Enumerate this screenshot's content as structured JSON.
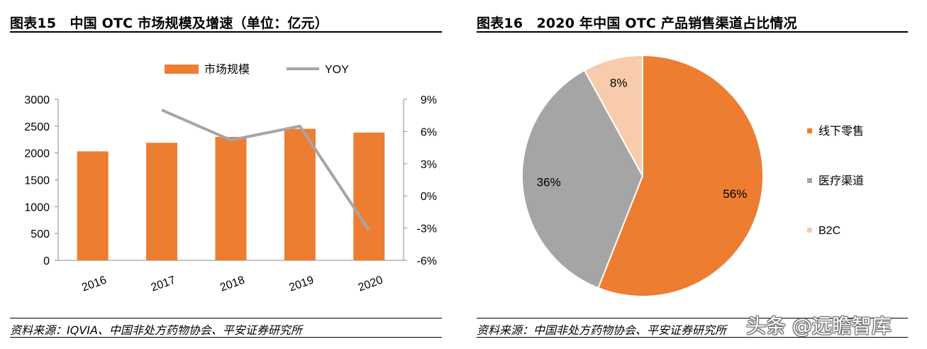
{
  "left": {
    "title": "图表15　中国 OTC 市场规模及增速（单位：亿元）",
    "source": "资料来源：IQVIA、中国非处方药物协会、平安证券研究所"
  },
  "right": {
    "title": "图表16　2020 年中国 OTC 产品销售渠道占比情况",
    "source": "资料来源：中国非处方药物协会、平安证券研究所"
  },
  "watermark": "头条 @远瞻智库",
  "colors": {
    "orange": "#ED7D31",
    "gray": "#A5A5A5",
    "peach": "#F8CBAD"
  },
  "chart_data": [
    {
      "type": "bar",
      "categories": [
        "2016",
        "2017",
        "2018",
        "2019",
        "2020"
      ],
      "series": [
        {
          "name": "市场规模",
          "type": "bar",
          "axis": "left",
          "values": [
            2030,
            2190,
            2300,
            2450,
            2380
          ]
        },
        {
          "name": "YOY",
          "type": "line",
          "axis": "right",
          "values": [
            null,
            8.0,
            5.2,
            6.5,
            -3.2
          ]
        }
      ],
      "y_left": {
        "lim": [
          0,
          3000
        ],
        "ticks": [
          "0",
          "500",
          "1000",
          "1500",
          "2000",
          "2500",
          "3000"
        ]
      },
      "y_right": {
        "lim": [
          -6,
          9
        ],
        "ticks": [
          "-6%",
          "-3%",
          "0%",
          "3%",
          "6%",
          "9%"
        ]
      },
      "legend": "top",
      "grid": false
    },
    {
      "type": "pie",
      "labels": [
        "线下零售",
        "医疗渠道",
        "B2C"
      ],
      "values": [
        56,
        36,
        8
      ],
      "value_labels": [
        "56%",
        "36%",
        "8%"
      ],
      "legend": "right"
    }
  ]
}
